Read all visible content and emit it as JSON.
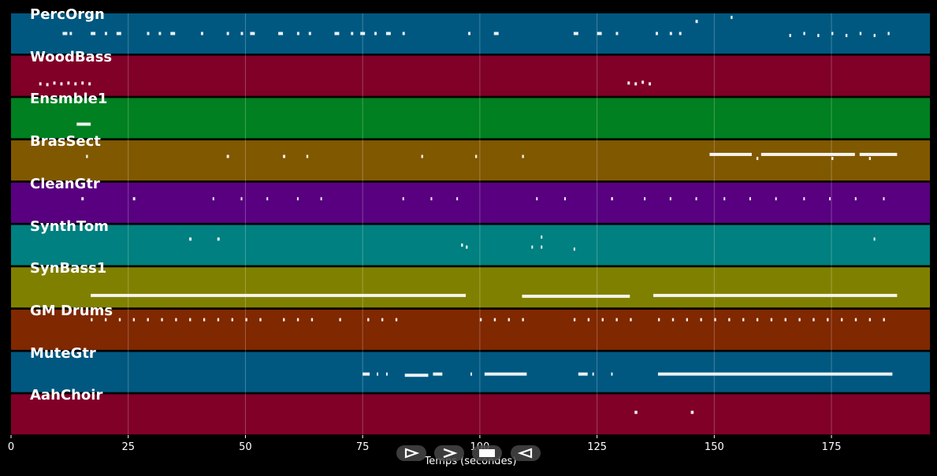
{
  "window": {
    "background": "#000000"
  },
  "controls": [
    {
      "name": "play-button",
      "icon": "play-triangle-icon"
    },
    {
      "name": "next-button",
      "icon": "chevron-right-icon"
    },
    {
      "name": "stop-button",
      "icon": "stop-square-icon"
    },
    {
      "name": "rewind-button",
      "icon": "rewind-triangle-icon"
    }
  ],
  "chart_data": {
    "type": "piano-roll",
    "xlabel": "Temps (secondes)",
    "xlim": [
      0,
      196
    ],
    "xticks": [
      0,
      25,
      50,
      75,
      100,
      125,
      150,
      175
    ],
    "xtick_labels": [
      "0",
      "25",
      "50",
      "75",
      "100",
      "125",
      "150",
      "175"
    ],
    "grid": true,
    "tracks": [
      {
        "name": "PercOrgn",
        "color": "#005880",
        "notes": [
          [
            11,
            1,
            0.5
          ],
          [
            12.5,
            0.5,
            0.5
          ],
          [
            17,
            1,
            0.5
          ],
          [
            20,
            0.5,
            0.5
          ],
          [
            22.5,
            1,
            0.5
          ],
          [
            29,
            0.5,
            0.5
          ],
          [
            31.5,
            0.5,
            0.5
          ],
          [
            34,
            1,
            0.5
          ],
          [
            40.5,
            0.5,
            0.5
          ],
          [
            46,
            0.5,
            0.5
          ],
          [
            49,
            0.5,
            0.5
          ],
          [
            51,
            1,
            0.5
          ],
          [
            57,
            1,
            0.5
          ],
          [
            61,
            0.5,
            0.5
          ],
          [
            63.5,
            0.5,
            0.5
          ],
          [
            69,
            1,
            0.5
          ],
          [
            72.5,
            0.5,
            0.5
          ],
          [
            74.5,
            1,
            0.5
          ],
          [
            77.5,
            0.5,
            0.5
          ],
          [
            80,
            1,
            0.5
          ],
          [
            83.5,
            0.5,
            0.5
          ],
          [
            97.5,
            0.5,
            0.5
          ],
          [
            103,
            1,
            0.5
          ],
          [
            120,
            1,
            0.5
          ],
          [
            125,
            1,
            0.5
          ],
          [
            129,
            0.5,
            0.5
          ],
          [
            137.5,
            0.5,
            0.5
          ],
          [
            140.5,
            0.5,
            0.5
          ],
          [
            142.5,
            0.5,
            0.5
          ],
          [
            146,
            0.5,
            0.8
          ],
          [
            153.5,
            0.4,
            0.9
          ],
          [
            166,
            0.4,
            0.45
          ],
          [
            169,
            0.4,
            0.5
          ],
          [
            172,
            0.4,
            0.45
          ],
          [
            175,
            0.4,
            0.5
          ],
          [
            178,
            0.4,
            0.45
          ],
          [
            181,
            0.4,
            0.5
          ],
          [
            184,
            0.4,
            0.45
          ],
          [
            187,
            0.4,
            0.5
          ]
        ]
      },
      {
        "name": "WoodBass",
        "color": "#800028",
        "notes": [
          [
            6,
            0.5,
            0.3
          ],
          [
            7.5,
            0.5,
            0.28
          ],
          [
            9,
            0.5,
            0.32
          ],
          [
            10.5,
            0.5,
            0.3
          ],
          [
            12,
            0.5,
            0.32
          ],
          [
            13.5,
            0.5,
            0.3
          ],
          [
            15,
            0.5,
            0.32
          ],
          [
            16.5,
            0.5,
            0.3
          ],
          [
            131.5,
            0.5,
            0.32
          ],
          [
            133,
            0.5,
            0.3
          ],
          [
            134.5,
            0.5,
            0.34
          ],
          [
            136,
            0.5,
            0.3
          ]
        ]
      },
      {
        "name": "Ensmble1",
        "color": "#008020",
        "notes": [
          [
            14,
            3,
            0.35
          ]
        ]
      },
      {
        "name": "BrasSect",
        "color": "#805800",
        "notes": [
          [
            16,
            0.4,
            0.6
          ],
          [
            46,
            0.5,
            0.6
          ],
          [
            58,
            0.5,
            0.6
          ],
          [
            63,
            0.4,
            0.6
          ],
          [
            87.5,
            0.4,
            0.6
          ],
          [
            99,
            0.4,
            0.6
          ],
          [
            109,
            0.4,
            0.6
          ],
          [
            149,
            9,
            0.65
          ],
          [
            159,
            0.4,
            0.55
          ],
          [
            160,
            20,
            0.65
          ],
          [
            175,
            0.4,
            0.55
          ],
          [
            181,
            8,
            0.65
          ],
          [
            183,
            0.4,
            0.55
          ]
        ]
      },
      {
        "name": "CleanGtr",
        "color": "#580080",
        "notes": [
          [
            15,
            0.5,
            0.6
          ],
          [
            26,
            0.5,
            0.6
          ],
          [
            43,
            0.3,
            0.6
          ],
          [
            49,
            0.3,
            0.6
          ],
          [
            54.5,
            0.3,
            0.6
          ],
          [
            61,
            0.3,
            0.6
          ],
          [
            66,
            0.3,
            0.6
          ],
          [
            83.5,
            0.3,
            0.6
          ],
          [
            89.5,
            0.3,
            0.6
          ],
          [
            95,
            0.3,
            0.6
          ],
          [
            112,
            0.3,
            0.6
          ],
          [
            118,
            0.3,
            0.6
          ],
          [
            128,
            0.4,
            0.6
          ],
          [
            135,
            0.3,
            0.6
          ],
          [
            140.5,
            0.3,
            0.6
          ],
          [
            146,
            0.3,
            0.6
          ],
          [
            152,
            0.3,
            0.6
          ],
          [
            157.5,
            0.3,
            0.6
          ],
          [
            163,
            0.3,
            0.6
          ],
          [
            169,
            0.3,
            0.6
          ],
          [
            174.5,
            0.3,
            0.6
          ],
          [
            180,
            0.3,
            0.6
          ],
          [
            186,
            0.3,
            0.6
          ]
        ]
      },
      {
        "name": "SynthTom",
        "color": "#008080",
        "notes": [
          [
            38,
            0.5,
            0.65
          ],
          [
            44,
            0.5,
            0.65
          ],
          [
            96,
            0.4,
            0.5
          ],
          [
            97,
            0.4,
            0.45
          ],
          [
            111,
            0.3,
            0.45
          ],
          [
            113,
            0.3,
            0.7
          ],
          [
            113,
            0.3,
            0.45
          ],
          [
            120,
            0.3,
            0.4
          ],
          [
            184,
            0.3,
            0.65
          ]
        ]
      },
      {
        "name": "SynBass1",
        "color": "#808000",
        "notes": [
          [
            17,
            80,
            0.3
          ],
          [
            109,
            23,
            0.28
          ],
          [
            137,
            52,
            0.3
          ]
        ]
      },
      {
        "name": "GM Drums",
        "color": "#802800",
        "notes": [
          [
            17,
            0.4,
            0.75
          ],
          [
            20,
            0.4,
            0.75
          ],
          [
            23,
            0.4,
            0.75
          ],
          [
            26,
            0.4,
            0.75
          ],
          [
            29,
            0.4,
            0.75
          ],
          [
            32,
            0.4,
            0.75
          ],
          [
            35,
            0.4,
            0.75
          ],
          [
            38,
            0.4,
            0.75
          ],
          [
            41,
            0.4,
            0.75
          ],
          [
            44,
            0.4,
            0.75
          ],
          [
            47,
            0.4,
            0.75
          ],
          [
            50,
            0.4,
            0.75
          ],
          [
            53,
            0.4,
            0.75
          ],
          [
            58,
            0.4,
            0.75
          ],
          [
            61,
            0.4,
            0.75
          ],
          [
            64,
            0.4,
            0.75
          ],
          [
            70,
            0.4,
            0.75
          ],
          [
            76,
            0.4,
            0.75
          ],
          [
            79,
            0.4,
            0.75
          ],
          [
            82,
            0.4,
            0.75
          ],
          [
            100,
            0.4,
            0.75
          ],
          [
            103,
            0.4,
            0.75
          ],
          [
            106,
            0.4,
            0.75
          ],
          [
            109,
            0.4,
            0.75
          ],
          [
            120,
            0.4,
            0.75
          ],
          [
            123,
            0.4,
            0.75
          ],
          [
            126,
            0.4,
            0.75
          ],
          [
            129,
            0.4,
            0.75
          ],
          [
            132,
            0.4,
            0.75
          ],
          [
            138,
            0.4,
            0.75
          ],
          [
            141,
            0.4,
            0.75
          ],
          [
            144,
            0.4,
            0.75
          ],
          [
            147,
            0.4,
            0.75
          ],
          [
            150,
            0.4,
            0.75
          ],
          [
            153,
            0.4,
            0.75
          ],
          [
            156,
            0.4,
            0.75
          ],
          [
            159,
            0.4,
            0.75
          ],
          [
            162,
            0.4,
            0.75
          ],
          [
            165,
            0.4,
            0.75
          ],
          [
            168,
            0.4,
            0.75
          ],
          [
            171,
            0.4,
            0.75
          ],
          [
            174,
            0.4,
            0.75
          ],
          [
            177,
            0.4,
            0.75
          ],
          [
            180,
            0.4,
            0.75
          ],
          [
            183,
            0.4,
            0.75
          ],
          [
            186,
            0.4,
            0.75
          ]
        ]
      },
      {
        "name": "MuteGtr",
        "color": "#005880",
        "notes": [
          [
            75,
            1.5,
            0.45
          ],
          [
            78,
            0.3,
            0.45
          ],
          [
            80,
            0.3,
            0.45
          ],
          [
            84,
            5,
            0.42
          ],
          [
            90,
            2,
            0.45
          ],
          [
            98,
            0.3,
            0.45
          ],
          [
            101,
            9,
            0.45
          ],
          [
            121,
            2,
            0.45
          ],
          [
            124,
            0.3,
            0.45
          ],
          [
            128,
            0.3,
            0.45
          ],
          [
            138,
            50,
            0.45
          ]
        ]
      },
      {
        "name": "AahChoir",
        "color": "#800028",
        "notes": [
          [
            133,
            0.6,
            0.55
          ],
          [
            145,
            0.6,
            0.55
          ]
        ]
      }
    ]
  }
}
